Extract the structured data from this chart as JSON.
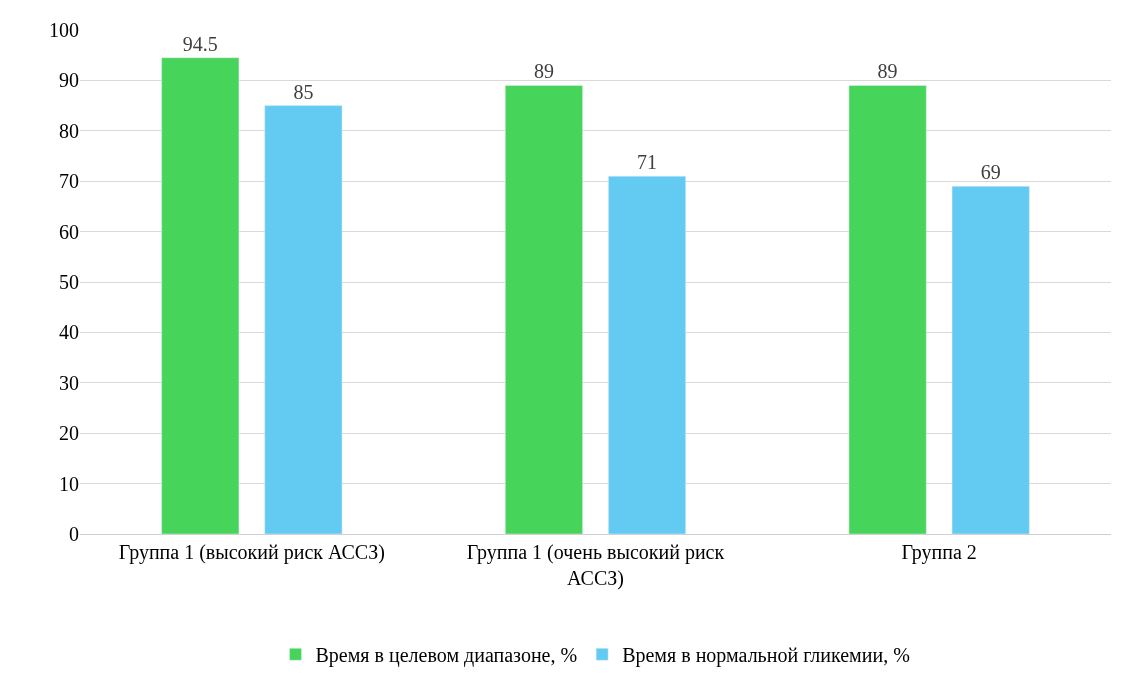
{
  "chart_data": {
    "type": "bar",
    "categories": [
      "Группа 1 (высокий риск АССЗ)",
      "Группа 1 (очень высокий риск АССЗ)",
      "Группа 2"
    ],
    "series": [
      {
        "name": "Время в целевом диапазоне, %",
        "color": "#47d45a",
        "values": [
          94.5,
          89,
          89
        ]
      },
      {
        "name": "Время в нормальной гликемии, %",
        "color": "#63cbf2",
        "values": [
          85,
          71,
          69
        ]
      }
    ],
    "ylim": [
      0,
      100
    ],
    "yticks": [
      0,
      10,
      20,
      30,
      40,
      50,
      60,
      70,
      80,
      90,
      100
    ],
    "grid": "y",
    "legend": "bottom",
    "data_labels": true
  }
}
